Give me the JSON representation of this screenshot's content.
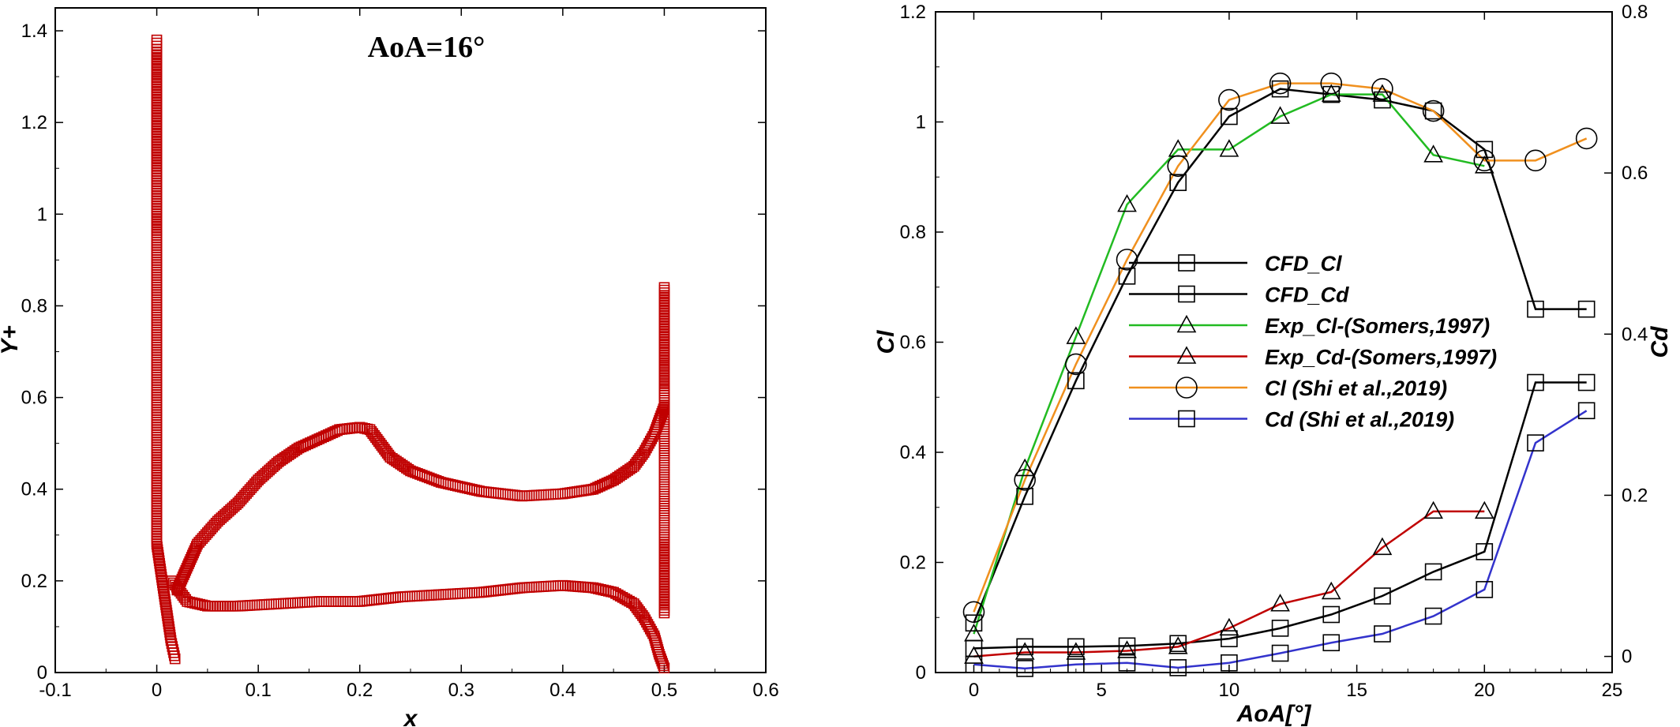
{
  "chart_data": [
    {
      "type": "scatter",
      "annotation": "AoA=16°",
      "xlabel": "x",
      "ylabel": "Y+",
      "xlim": [
        -0.1,
        0.6
      ],
      "ylim": [
        0,
        1.45
      ],
      "x_ticks": [
        "-0.1",
        "0",
        "0.1",
        "0.2",
        "0.3",
        "0.4",
        "0.5",
        "0.6"
      ],
      "y_ticks": [
        "0",
        "0.2",
        "0.4",
        "0.6",
        "0.8",
        "1",
        "1.2",
        "1.4"
      ],
      "marker": "square",
      "color": "#c00000",
      "series": [
        {
          "x": [
            0.02,
            0.04,
            0.06,
            0.08,
            0.1,
            0.12,
            0.14,
            0.16,
            0.18,
            0.2,
            0.21,
            0.22,
            0.23,
            0.25,
            0.28,
            0.32,
            0.36,
            0.4,
            0.43,
            0.45,
            0.47,
            0.48,
            0.49,
            0.495,
            0.5
          ],
          "y": [
            0.18,
            0.28,
            0.33,
            0.37,
            0.42,
            0.46,
            0.49,
            0.51,
            0.53,
            0.535,
            0.53,
            0.5,
            0.47,
            0.44,
            0.415,
            0.395,
            0.385,
            0.39,
            0.4,
            0.42,
            0.45,
            0.48,
            0.52,
            0.55,
            0.58
          ]
        },
        {
          "x": [
            0.015,
            0.03,
            0.05,
            0.08,
            0.12,
            0.16,
            0.2,
            0.24,
            0.28,
            0.32,
            0.36,
            0.4,
            0.43,
            0.45,
            0.47,
            0.48,
            0.49,
            0.495,
            0.5
          ],
          "y": [
            0.2,
            0.155,
            0.145,
            0.145,
            0.15,
            0.155,
            0.155,
            0.165,
            0.17,
            0.175,
            0.185,
            0.19,
            0.185,
            0.175,
            0.15,
            0.12,
            0.08,
            0.04,
            0.01
          ]
        },
        {
          "x": [
            0.0,
            0.0,
            0.0,
            0.0,
            0.0,
            0.0,
            0.0,
            0.0,
            0.0,
            0.0,
            0.0,
            0.0,
            0.0,
            0.0,
            0.0,
            0.0,
            0.0,
            0.0,
            0.0,
            0.0,
            0.0,
            0.0,
            0.0,
            0.0,
            0.002,
            0.004,
            0.006,
            0.008,
            0.01,
            0.012,
            0.014,
            0.016,
            0.018
          ],
          "y": [
            1.38,
            1.36,
            1.33,
            1.3,
            1.26,
            1.22,
            1.18,
            1.14,
            1.1,
            1.05,
            1.0,
            0.96,
            0.9,
            0.84,
            0.78,
            0.72,
            0.66,
            0.6,
            0.54,
            0.48,
            0.43,
            0.38,
            0.33,
            0.28,
            0.25,
            0.22,
            0.19,
            0.16,
            0.13,
            0.1,
            0.07,
            0.05,
            0.03
          ]
        },
        {
          "x": [
            0.5,
            0.5,
            0.5,
            0.5,
            0.5,
            0.5,
            0.5,
            0.5,
            0.5,
            0.5,
            0.5,
            0.5
          ],
          "y": [
            0.84,
            0.8,
            0.76,
            0.72,
            0.68,
            0.65,
            0.62,
            0.29,
            0.25,
            0.21,
            0.17,
            0.13
          ]
        }
      ]
    },
    {
      "type": "line",
      "xlabel": "AoA[°]",
      "ylabel": "Cl",
      "ylabel_right": "Cd",
      "xlim": [
        -1.5,
        25
      ],
      "ylim": [
        0,
        1.2
      ],
      "ylim_right": [
        -0.02,
        0.8
      ],
      "x_ticks": [
        "0",
        "5",
        "10",
        "15",
        "20",
        "25"
      ],
      "y_ticks": [
        "0",
        "0.2",
        "0.4",
        "0.6",
        "0.8",
        "1",
        "1.2"
      ],
      "y_ticks_right": [
        "0",
        "0.2",
        "0.4",
        "0.6",
        "0.8"
      ],
      "legend_position": "center",
      "series": [
        {
          "name": "CFD_Cl",
          "axis": "left",
          "color": "#000000",
          "marker": "square",
          "x": [
            0,
            2,
            4,
            6,
            8,
            10,
            12,
            14,
            16,
            18,
            20,
            22,
            24
          ],
          "y": [
            0.09,
            0.32,
            0.53,
            0.72,
            0.89,
            1.01,
            1.06,
            1.05,
            1.04,
            1.02,
            0.95,
            0.66,
            0.66
          ]
        },
        {
          "name": "CFD_Cd",
          "axis": "right",
          "color": "#000000",
          "marker": "square",
          "x": [
            0,
            2,
            4,
            6,
            8,
            10,
            12,
            14,
            16,
            18,
            20,
            22,
            24
          ],
          "y": [
            0.01,
            0.012,
            0.012,
            0.013,
            0.016,
            0.022,
            0.035,
            0.052,
            0.075,
            0.105,
            0.13,
            0.34,
            0.34
          ]
        },
        {
          "name": "Exp_Cl-(Somers,1997)",
          "axis": "left",
          "color": "#22bb22",
          "marker": "triangle",
          "x": [
            0,
            2,
            4,
            6,
            8,
            10,
            12,
            14,
            16,
            18,
            20
          ],
          "y": [
            0.07,
            0.37,
            0.61,
            0.85,
            0.95,
            0.95,
            1.01,
            1.05,
            1.05,
            0.94,
            0.92
          ]
        },
        {
          "name": "Exp_Cd-(Somers,1997)",
          "axis": "right",
          "color": "#c00000",
          "marker": "triangle",
          "x": [
            0,
            2,
            4,
            6,
            8,
            10,
            12,
            14,
            16,
            18,
            20
          ],
          "y": [
            0.0,
            0.005,
            0.005,
            0.007,
            0.012,
            0.035,
            0.065,
            0.08,
            0.135,
            0.18,
            0.18
          ]
        },
        {
          "name": "Cl (Shi et al.,2019)",
          "axis": "left",
          "color": "#f0901e",
          "marker": "circle",
          "x": [
            0,
            2,
            4,
            6,
            8,
            10,
            12,
            14,
            16,
            18,
            20,
            22,
            24
          ],
          "y": [
            0.11,
            0.35,
            0.56,
            0.75,
            0.92,
            1.04,
            1.07,
            1.07,
            1.06,
            1.02,
            0.93,
            0.93,
            0.97
          ]
        },
        {
          "name": "Cd (Shi et al.,2019)",
          "axis": "right",
          "color": "#3333cc",
          "marker": "square",
          "x": [
            0,
            2,
            4,
            6,
            8,
            10,
            12,
            14,
            16,
            18,
            20,
            22,
            24
          ],
          "y": [
            -0.01,
            -0.015,
            -0.01,
            -0.008,
            -0.014,
            -0.008,
            0.004,
            0.017,
            0.028,
            0.05,
            0.083,
            0.265,
            0.305
          ]
        }
      ]
    }
  ]
}
